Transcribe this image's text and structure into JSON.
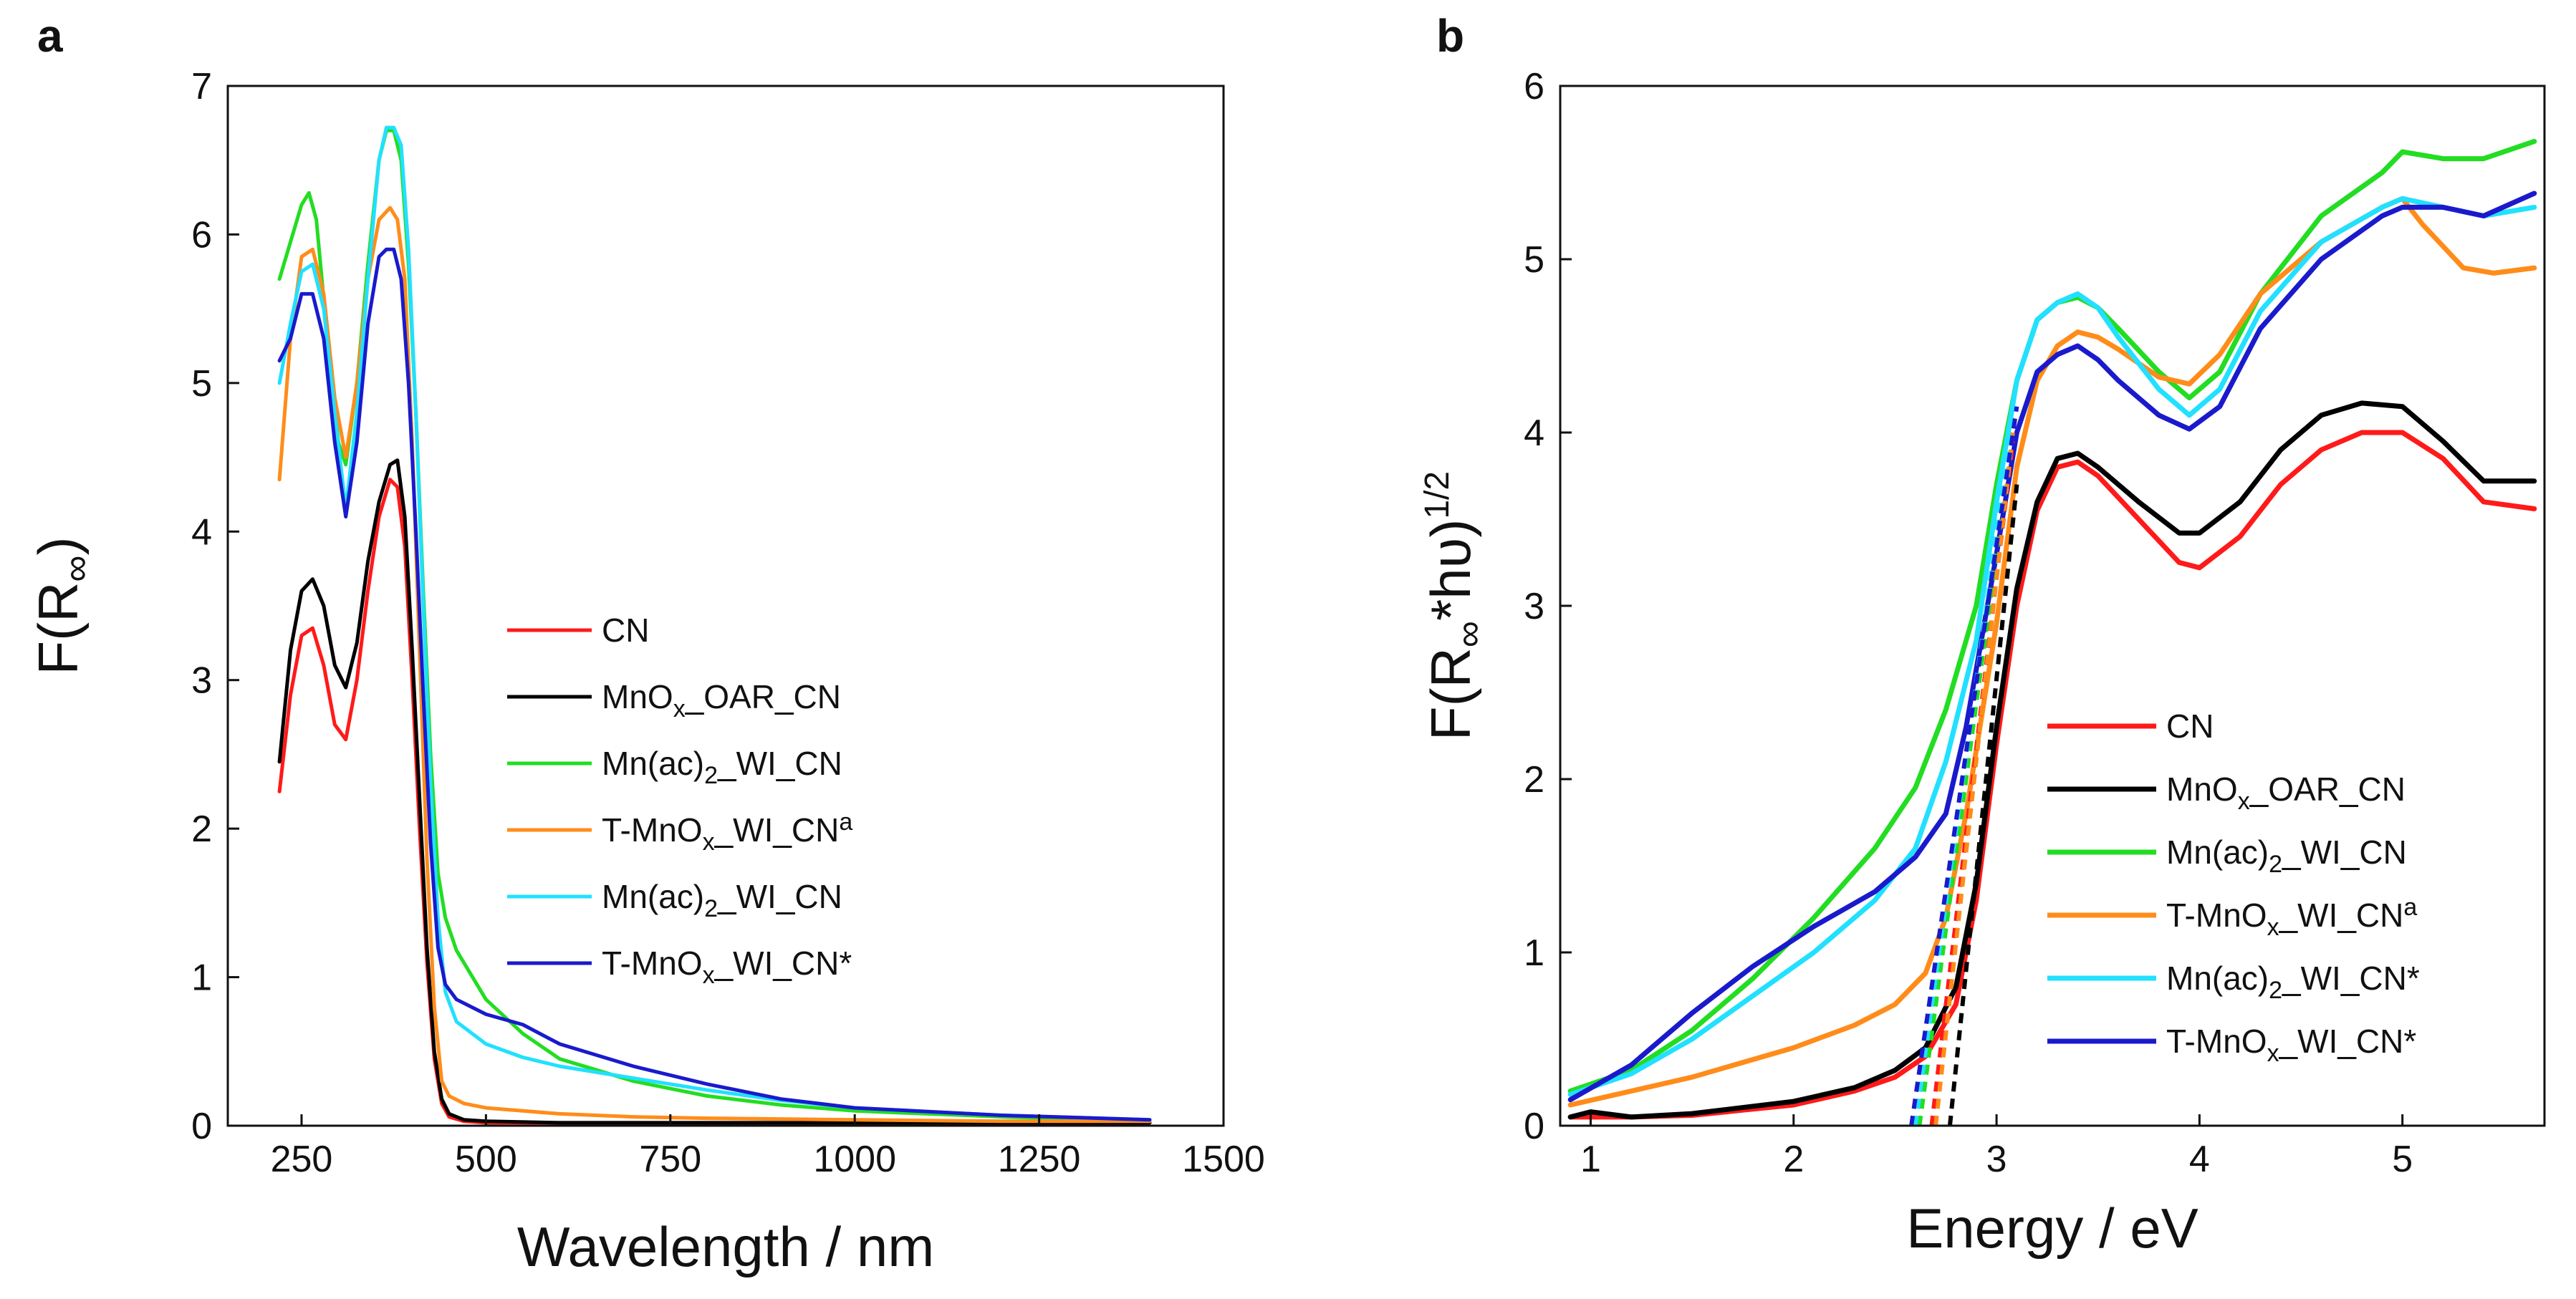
{
  "chart_data": [
    {
      "type": "line",
      "panel": "a",
      "xlabel": "Wavelength / nm",
      "ylabel": "F(R",
      "ylabel_sub": "∞",
      "ylabel_close": ")",
      "xlim": [
        150,
        1500
      ],
      "ylim": [
        0,
        7
      ],
      "xticks": [
        250,
        500,
        750,
        1000,
        1250,
        1500
      ],
      "yticks": [
        0,
        1,
        2,
        3,
        4,
        5,
        6,
        7
      ],
      "legend_position": "center-right",
      "series": [
        {
          "name": "CN",
          "legend": [
            "CN"
          ],
          "color": "#ff1a1a",
          "x": [
            220,
            235,
            250,
            265,
            280,
            295,
            310,
            325,
            340,
            355,
            370,
            380,
            390,
            400,
            410,
            420,
            430,
            440,
            450,
            470,
            500,
            550,
            600,
            700,
            800,
            1000,
            1200,
            1400
          ],
          "y": [
            2.25,
            2.9,
            3.3,
            3.35,
            3.1,
            2.7,
            2.6,
            3.0,
            3.6,
            4.1,
            4.35,
            4.3,
            3.9,
            3.0,
            2.0,
            1.1,
            0.45,
            0.15,
            0.06,
            0.03,
            0.02,
            0.02,
            0.02,
            0.02,
            0.02,
            0.02,
            0.02,
            0.02
          ]
        },
        {
          "name": "MnOx_OAR_CN",
          "legend": [
            "MnO",
            "x",
            "_OAR_CN"
          ],
          "color": "#000000",
          "x": [
            220,
            235,
            250,
            265,
            280,
            295,
            310,
            325,
            340,
            355,
            370,
            380,
            390,
            400,
            410,
            420,
            430,
            440,
            450,
            470,
            500,
            600,
            800,
            1000,
            1400
          ],
          "y": [
            2.45,
            3.2,
            3.6,
            3.68,
            3.5,
            3.1,
            2.95,
            3.25,
            3.8,
            4.2,
            4.45,
            4.48,
            4.1,
            3.2,
            2.2,
            1.2,
            0.5,
            0.18,
            0.08,
            0.04,
            0.03,
            0.02,
            0.02,
            0.02,
            0.02
          ]
        },
        {
          "name": "Mn(ac)2_WI_CN",
          "legend": [
            "Mn(ac)",
            "2",
            "_WI_CN"
          ],
          "color": "#22dd22",
          "x": [
            220,
            235,
            250,
            260,
            270,
            285,
            300,
            310,
            325,
            340,
            355,
            365,
            375,
            385,
            395,
            405,
            415,
            425,
            435,
            445,
            460,
            500,
            550,
            600,
            700,
            800,
            900,
            1000,
            1200,
            1400
          ],
          "y": [
            5.7,
            5.95,
            6.2,
            6.28,
            6.1,
            5.3,
            4.6,
            4.45,
            5.0,
            5.8,
            6.5,
            6.7,
            6.7,
            6.5,
            5.8,
            4.8,
            3.6,
            2.5,
            1.7,
            1.4,
            1.18,
            0.85,
            0.62,
            0.45,
            0.3,
            0.2,
            0.14,
            0.1,
            0.06,
            0.03
          ]
        },
        {
          "name": "T-MnOx_WI_CNa",
          "legend": [
            "T-MnO",
            "x",
            "_WI_CN",
            "a"
          ],
          "color": "#ff8c1a",
          "x": [
            220,
            235,
            250,
            265,
            280,
            295,
            310,
            325,
            340,
            355,
            370,
            380,
            390,
            400,
            410,
            420,
            430,
            440,
            450,
            470,
            500,
            550,
            600,
            700,
            800,
            1000,
            1200,
            1400
          ],
          "y": [
            4.35,
            5.3,
            5.85,
            5.9,
            5.6,
            4.9,
            4.5,
            5.0,
            5.7,
            6.1,
            6.18,
            6.1,
            5.7,
            4.6,
            3.2,
            1.8,
            0.8,
            0.3,
            0.2,
            0.15,
            0.12,
            0.1,
            0.08,
            0.06,
            0.05,
            0.04,
            0.03,
            0.03
          ]
        },
        {
          "name": "Mn(ac)2_WI_CN",
          "legend": [
            "Mn(ac)",
            "2",
            "_WI_CN"
          ],
          "color": "#22e0ff",
          "x": [
            220,
            235,
            250,
            265,
            280,
            295,
            310,
            325,
            340,
            355,
            365,
            375,
            385,
            395,
            405,
            415,
            425,
            435,
            445,
            460,
            500,
            550,
            600,
            700,
            800,
            900,
            1000,
            1200,
            1400
          ],
          "y": [
            5.0,
            5.4,
            5.75,
            5.8,
            5.5,
            4.8,
            4.15,
            4.8,
            5.7,
            6.5,
            6.72,
            6.72,
            6.6,
            5.9,
            4.8,
            3.5,
            2.3,
            1.4,
            0.9,
            0.7,
            0.55,
            0.46,
            0.4,
            0.32,
            0.24,
            0.17,
            0.12,
            0.07,
            0.04
          ]
        },
        {
          "name": "T-MnOx_WI_CN*",
          "legend": [
            "T-MnO",
            "x",
            "_WI_CN*"
          ],
          "color": "#1a1acc",
          "x": [
            220,
            235,
            250,
            265,
            280,
            295,
            310,
            325,
            340,
            355,
            365,
            375,
            385,
            395,
            405,
            415,
            425,
            435,
            445,
            460,
            500,
            550,
            600,
            700,
            800,
            900,
            1000,
            1200,
            1400
          ],
          "y": [
            5.15,
            5.3,
            5.6,
            5.6,
            5.3,
            4.6,
            4.1,
            4.6,
            5.4,
            5.85,
            5.9,
            5.9,
            5.7,
            5.0,
            4.0,
            2.9,
            1.9,
            1.2,
            0.95,
            0.85,
            0.75,
            0.68,
            0.55,
            0.4,
            0.28,
            0.18,
            0.12,
            0.07,
            0.04
          ]
        }
      ]
    },
    {
      "type": "line",
      "panel": "b",
      "xlabel": "Energy / eV",
      "ylabel": "F(R",
      "ylabel_sub": "∞",
      "ylabel_rest": "*hυ)",
      "ylabel_sup": "1/2",
      "xlim": [
        0.85,
        5.7
      ],
      "ylim": [
        0,
        6
      ],
      "xticks": [
        1,
        2,
        3,
        4,
        5
      ],
      "yticks": [
        0,
        1,
        2,
        3,
        4,
        5,
        6
      ],
      "legend_position": "bottom-right",
      "series": [
        {
          "name": "CN",
          "legend": [
            "CN"
          ],
          "color": "#ff1a1a",
          "x": [
            0.9,
            1.2,
            1.5,
            2.0,
            2.3,
            2.5,
            2.65,
            2.8,
            2.9,
            3.0,
            3.1,
            3.2,
            3.3,
            3.4,
            3.5,
            3.7,
            3.9,
            4.0,
            4.2,
            4.4,
            4.6,
            4.8,
            5.0,
            5.2,
            5.4,
            5.65
          ],
          "y": [
            0.05,
            0.05,
            0.06,
            0.12,
            0.2,
            0.28,
            0.4,
            0.7,
            1.3,
            2.2,
            3.0,
            3.55,
            3.8,
            3.83,
            3.75,
            3.5,
            3.25,
            3.22,
            3.4,
            3.7,
            3.9,
            4.0,
            4.0,
            3.85,
            3.6,
            3.56
          ]
        },
        {
          "name": "MnOx_OAR_CN",
          "legend": [
            "MnO",
            "x",
            "_OAR_CN"
          ],
          "color": "#000000",
          "x": [
            0.9,
            1.0,
            1.2,
            1.5,
            2.0,
            2.3,
            2.5,
            2.65,
            2.8,
            2.9,
            3.0,
            3.1,
            3.2,
            3.3,
            3.4,
            3.5,
            3.7,
            3.9,
            4.0,
            4.2,
            4.4,
            4.6,
            4.8,
            5.0,
            5.2,
            5.4,
            5.65
          ],
          "y": [
            0.05,
            0.08,
            0.05,
            0.07,
            0.14,
            0.22,
            0.32,
            0.45,
            0.8,
            1.4,
            2.3,
            3.1,
            3.6,
            3.85,
            3.88,
            3.8,
            3.6,
            3.42,
            3.42,
            3.6,
            3.9,
            4.1,
            4.17,
            4.15,
            3.95,
            3.72,
            3.72
          ]
        },
        {
          "name": "Mn(ac)2_WI_CN",
          "legend": [
            "Mn(ac)",
            "2",
            "_WI_CN"
          ],
          "color": "#22dd22",
          "x": [
            0.9,
            1.2,
            1.5,
            1.8,
            2.1,
            2.4,
            2.6,
            2.75,
            2.9,
            3.0,
            3.1,
            3.2,
            3.3,
            3.4,
            3.5,
            3.6,
            3.8,
            3.95,
            4.1,
            4.3,
            4.6,
            4.9,
            5.0,
            5.2,
            5.4,
            5.65
          ],
          "y": [
            0.2,
            0.32,
            0.55,
            0.85,
            1.2,
            1.6,
            1.95,
            2.4,
            3.0,
            3.7,
            4.3,
            4.65,
            4.75,
            4.78,
            4.72,
            4.6,
            4.35,
            4.2,
            4.35,
            4.8,
            5.25,
            5.5,
            5.62,
            5.58,
            5.58,
            5.68
          ]
        },
        {
          "name": "T-MnOx_WI_CNa",
          "legend": [
            "T-MnO",
            "x",
            "_WI_CN",
            "a"
          ],
          "color": "#ff8c1a",
          "x": [
            0.9,
            1.2,
            1.5,
            2.0,
            2.3,
            2.5,
            2.65,
            2.75,
            2.85,
            3.0,
            3.1,
            3.2,
            3.3,
            3.4,
            3.5,
            3.6,
            3.8,
            3.95,
            4.1,
            4.3,
            4.6,
            4.9,
            5.0,
            5.1,
            5.3,
            5.45,
            5.65
          ],
          "y": [
            0.12,
            0.2,
            0.28,
            0.45,
            0.58,
            0.7,
            0.88,
            1.2,
            1.8,
            2.9,
            3.8,
            4.3,
            4.5,
            4.58,
            4.55,
            4.48,
            4.32,
            4.28,
            4.45,
            4.8,
            5.1,
            5.3,
            5.35,
            5.2,
            4.95,
            4.92,
            4.95
          ]
        },
        {
          "name": "Mn(ac)2_WI_CN*",
          "legend": [
            "Mn(ac)",
            "2",
            "_WI_CN*"
          ],
          "color": "#22e0ff",
          "x": [
            0.9,
            1.2,
            1.5,
            1.8,
            2.1,
            2.4,
            2.6,
            2.75,
            2.9,
            3.0,
            3.1,
            3.2,
            3.3,
            3.4,
            3.5,
            3.6,
            3.8,
            3.95,
            4.1,
            4.3,
            4.6,
            4.9,
            5.0,
            5.2,
            5.4,
            5.65
          ],
          "y": [
            0.18,
            0.3,
            0.5,
            0.75,
            1.0,
            1.3,
            1.6,
            2.1,
            2.8,
            3.6,
            4.3,
            4.65,
            4.75,
            4.8,
            4.72,
            4.55,
            4.25,
            4.1,
            4.25,
            4.7,
            5.1,
            5.3,
            5.35,
            5.3,
            5.25,
            5.3
          ]
        },
        {
          "name": "T-MnOx_WI_CN*",
          "legend": [
            "T-MnO",
            "x",
            "_WI_CN*"
          ],
          "color": "#1a1acc",
          "x": [
            0.9,
            1.2,
            1.5,
            1.8,
            2.1,
            2.4,
            2.6,
            2.75,
            2.85,
            3.0,
            3.1,
            3.2,
            3.3,
            3.4,
            3.5,
            3.6,
            3.8,
            3.95,
            4.1,
            4.3,
            4.6,
            4.9,
            5.0,
            5.2,
            5.4,
            5.65
          ],
          "y": [
            0.15,
            0.35,
            0.65,
            0.92,
            1.15,
            1.35,
            1.55,
            1.8,
            2.3,
            3.3,
            4.0,
            4.35,
            4.45,
            4.5,
            4.42,
            4.3,
            4.1,
            4.02,
            4.15,
            4.6,
            5.0,
            5.25,
            5.3,
            5.3,
            5.25,
            5.38
          ]
        }
      ],
      "tangents": [
        {
          "series": "CN",
          "color": "#ff1a1a",
          "x": [
            2.68,
            3.08
          ],
          "y": [
            0,
            3.95
          ]
        },
        {
          "series": "MnOx_OAR_CN",
          "color": "#000000",
          "x": [
            2.77,
            3.1
          ],
          "y": [
            0,
            3.7
          ]
        },
        {
          "series": "Mn(ac)2_WI_CN",
          "color": "#22dd22",
          "x": [
            2.62,
            3.08
          ],
          "y": [
            0,
            4.0
          ]
        },
        {
          "series": "T-MnOx_WI_CNa",
          "color": "#ff8c1a",
          "x": [
            2.7,
            3.08
          ],
          "y": [
            0,
            4.0
          ]
        },
        {
          "series": "Mn(ac)2_WI_CN*",
          "color": "#22e0ff",
          "x": [
            2.6,
            3.08
          ],
          "y": [
            0,
            4.1
          ]
        },
        {
          "series": "T-MnOx_WI_CN*",
          "color": "#1a1acc",
          "x": [
            2.58,
            3.1
          ],
          "y": [
            0,
            4.15
          ]
        }
      ]
    }
  ]
}
